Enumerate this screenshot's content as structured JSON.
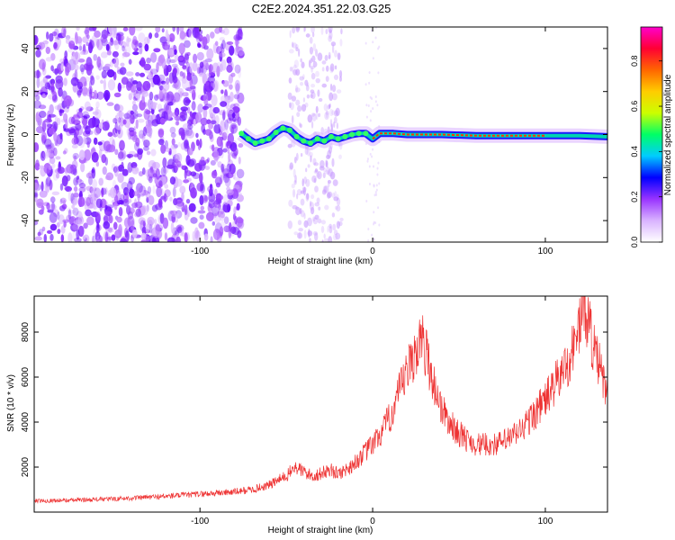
{
  "figure": {
    "title": "C2E2.2024.351.22.03.G25"
  },
  "colors": {
    "snr_line": "#ee3333",
    "colorbar_stops": [
      "#ffffff",
      "#d9b3ff",
      "#9933ff",
      "#0000ff",
      "#00ccff",
      "#00ff66",
      "#ccff00",
      "#ffcc00",
      "#ff6600",
      "#ff0033",
      "#ff00cc"
    ]
  },
  "chart_data": [
    {
      "type": "heatmap",
      "xlabel": "Height of straight line (km)",
      "ylabel": "Frequency (Hz)",
      "xlim": [
        -196,
        136
      ],
      "ylim": [
        -50,
        50
      ],
      "xticks": [
        -100,
        0,
        100
      ],
      "xtick_labels": [
        "-100",
        "0",
        "100"
      ],
      "yticks": [
        -40,
        -20,
        0,
        20,
        40
      ],
      "ytick_labels": [
        "-40",
        "-20",
        "0",
        "20",
        "40"
      ],
      "grid": false,
      "signal_track": {
        "x": [
          -76,
          -72,
          -68,
          -64,
          -60,
          -56,
          -52,
          -48,
          -44,
          -40,
          -36,
          -32,
          -28,
          -24,
          -20,
          -16,
          -12,
          -8,
          -4,
          0,
          4,
          8,
          12,
          20,
          40,
          60,
          80,
          100,
          120,
          136
        ],
        "y": [
          0.5,
          -2,
          -4,
          -3,
          -2,
          1,
          3,
          2,
          -1,
          -3,
          -4,
          -2,
          -3,
          -1,
          -2,
          -1,
          0,
          0.5,
          0.5,
          -2,
          0.5,
          0.5,
          0.5,
          0,
          0,
          -0.5,
          -0.5,
          -0.5,
          -0.5,
          -1
        ]
      },
      "noise_region_x": [
        -196,
        -76
      ],
      "colorbar": {
        "label": "Normalized spectral amplitude",
        "range": [
          0,
          0.95
        ],
        "ticks": [
          0.0,
          0.2,
          0.4,
          0.6,
          0.8
        ],
        "tick_labels": [
          "0.0",
          "0.2",
          "0.4",
          "0.6",
          "0.8"
        ]
      }
    },
    {
      "type": "line",
      "xlabel": "Height of straight line (km)",
      "ylabel": "SNR (10 * v/v)",
      "xlim": [
        -196,
        136
      ],
      "ylim": [
        0,
        9600
      ],
      "xticks": [
        -100,
        0,
        100
      ],
      "xtick_labels": [
        "-100",
        "0",
        "100"
      ],
      "yticks": [
        2000,
        4000,
        6000,
        8000
      ],
      "ytick_labels": [
        "2000",
        "4000",
        "6000",
        "8000"
      ],
      "grid": false,
      "series": [
        {
          "x": [
            -196,
            -180,
            -160,
            -140,
            -120,
            -100,
            -80,
            -70,
            -60,
            -50,
            -45,
            -40,
            -35,
            -30,
            -25,
            -20,
            -15,
            -10,
            -5,
            0,
            5,
            10,
            15,
            20,
            25,
            28,
            30,
            32,
            35,
            40,
            45,
            50,
            55,
            60,
            65,
            70,
            75,
            80,
            85,
            90,
            95,
            100,
            105,
            110,
            115,
            120,
            122,
            125,
            128,
            130,
            133,
            136
          ],
          "y": [
            500,
            520,
            560,
            620,
            700,
            800,
            900,
            1000,
            1200,
            1600,
            2000,
            1800,
            1600,
            1700,
            1900,
            1700,
            1900,
            2200,
            2600,
            3000,
            3500,
            4200,
            5200,
            6200,
            7200,
            7600,
            7400,
            6800,
            5800,
            4600,
            3900,
            3500,
            3200,
            3000,
            3000,
            3000,
            3100,
            3300,
            3600,
            4000,
            4500,
            5000,
            5600,
            6200,
            7000,
            8400,
            9200,
            8600,
            7200,
            6800,
            6000,
            5200
          ]
        }
      ]
    }
  ]
}
